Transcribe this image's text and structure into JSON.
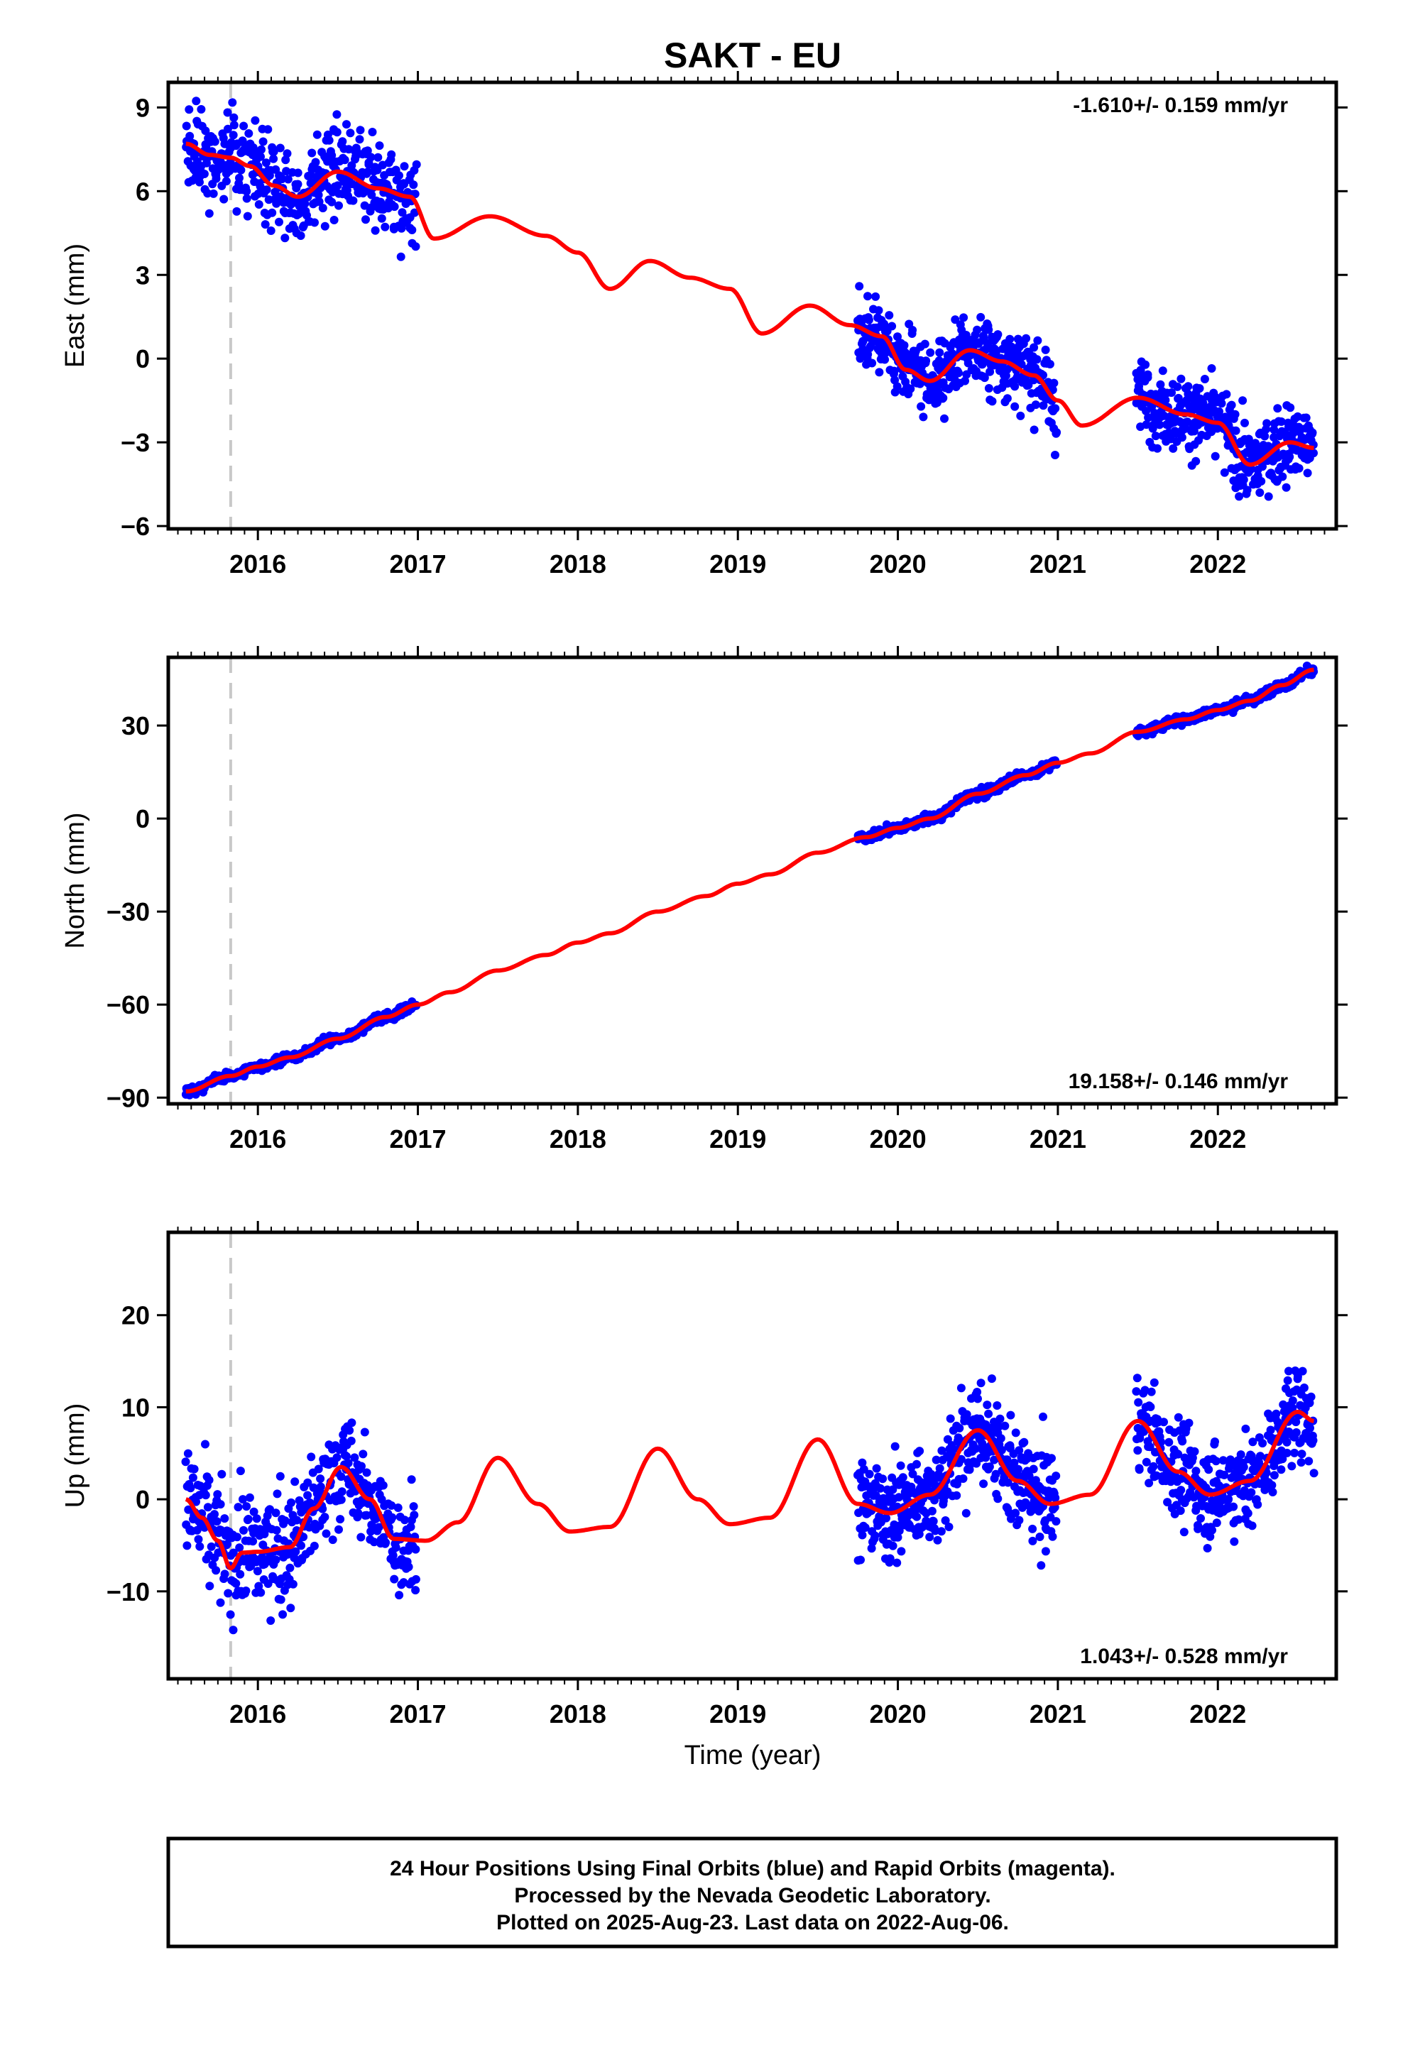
{
  "title": "SAKT - EU",
  "colors": {
    "data": "#0000ff",
    "model": "#ff0000",
    "marker": "#c8c8c8",
    "frame": "#000000"
  },
  "x_label": "Time (year)",
  "footer_lines": [
    "24 Hour Positions Using Final Orbits (blue) and Rapid Orbits (magenta).",
    "Processed by the Nevada Geodetic Laboratory.",
    "Plotted on 2025-Aug-23. Last data on 2022-Aug-06."
  ],
  "chart_data": [
    {
      "type": "scatter",
      "component": "east",
      "ylabel": "East (mm)",
      "rate_text": "-1.610+/- 0.159 mm/yr",
      "xlim": [
        2015.44,
        2022.74
      ],
      "ylim": [
        -6.1,
        9.9
      ],
      "x_ticks": [
        2016,
        2017,
        2018,
        2019,
        2020,
        2021,
        2022
      ],
      "x_tick_labels": [
        "2016",
        "2017",
        "2018",
        "2019",
        "2020",
        "2021",
        "2022"
      ],
      "y_ticks": [
        9,
        6,
        3,
        0,
        -3,
        -6
      ],
      "y_tick_labels": [
        "9",
        "6",
        "3",
        "0",
        "−3",
        "−6"
      ],
      "equipment_change_x": 2015.83,
      "data_segments": [
        {
          "start": 2015.55,
          "end": 2016.99,
          "samples": 430,
          "scatter": 1.1
        },
        {
          "start": 2019.75,
          "end": 2020.99,
          "samples": 430,
          "scatter": 0.95
        },
        {
          "start": 2021.49,
          "end": 2022.6,
          "samples": 380,
          "scatter": 0.95
        }
      ],
      "model_curve": {
        "x": [
          2015.55,
          2015.7,
          2015.83,
          2015.95,
          2016.1,
          2016.25,
          2016.5,
          2016.75,
          2016.95,
          2017.1,
          2017.45,
          2017.8,
          2018.0,
          2018.2,
          2018.45,
          2018.7,
          2018.95,
          2019.15,
          2019.45,
          2019.7,
          2019.9,
          2020.05,
          2020.2,
          2020.45,
          2020.65,
          2020.85,
          2021.0,
          2021.15,
          2021.5,
          2021.8,
          2022.0,
          2022.2,
          2022.45,
          2022.6
        ],
        "y": [
          7.7,
          7.3,
          7.2,
          6.9,
          6.2,
          5.8,
          6.7,
          6.1,
          5.8,
          4.3,
          5.1,
          4.4,
          3.8,
          2.5,
          3.5,
          2.9,
          2.5,
          0.9,
          1.9,
          1.2,
          0.8,
          -0.4,
          -0.8,
          0.3,
          -0.1,
          -0.6,
          -1.5,
          -2.4,
          -1.4,
          -2.0,
          -2.3,
          -3.8,
          -3.0,
          -3.2
        ]
      }
    },
    {
      "type": "scatter",
      "component": "north",
      "ylabel": "North (mm)",
      "rate_text": "19.158+/- 0.146 mm/yr",
      "xlim": [
        2015.44,
        2022.74
      ],
      "ylim": [
        -92,
        52
      ],
      "x_ticks": [
        2016,
        2017,
        2018,
        2019,
        2020,
        2021,
        2022
      ],
      "x_tick_labels": [
        "2016",
        "2017",
        "2018",
        "2019",
        "2020",
        "2021",
        "2022"
      ],
      "y_ticks": [
        30,
        0,
        -30,
        -60,
        -90
      ],
      "y_tick_labels": [
        "30",
        "0",
        "−30",
        "−60",
        "−90"
      ],
      "equipment_change_x": 2015.83,
      "data_segments": [
        {
          "start": 2015.55,
          "end": 2016.99,
          "samples": 430,
          "scatter": 1.0
        },
        {
          "start": 2019.75,
          "end": 2020.99,
          "samples": 430,
          "scatter": 1.0
        },
        {
          "start": 2021.49,
          "end": 2022.6,
          "samples": 380,
          "scatter": 1.0
        }
      ],
      "model_curve": {
        "x": [
          2015.55,
          2015.83,
          2016.0,
          2016.2,
          2016.5,
          2016.8,
          2017.0,
          2017.2,
          2017.5,
          2017.8,
          2018.0,
          2018.2,
          2018.5,
          2018.8,
          2019.0,
          2019.2,
          2019.5,
          2019.8,
          2020.0,
          2020.2,
          2020.5,
          2020.8,
          2021.0,
          2021.2,
          2021.5,
          2021.8,
          2022.0,
          2022.2,
          2022.4,
          2022.6
        ],
        "y": [
          -88,
          -83,
          -80,
          -77,
          -71,
          -64,
          -60,
          -56,
          -49,
          -44,
          -40,
          -37,
          -30,
          -25,
          -21,
          -18,
          -11,
          -6,
          -3,
          0,
          8,
          14,
          18,
          21,
          28,
          32,
          35,
          38,
          43,
          48
        ]
      }
    },
    {
      "type": "scatter",
      "component": "up",
      "ylabel": "Up (mm)",
      "rate_text": "1.043+/- 0.528 mm/yr",
      "xlim": [
        2015.44,
        2022.74
      ],
      "ylim": [
        -19.5,
        29
      ],
      "x_ticks": [
        2016,
        2017,
        2018,
        2019,
        2020,
        2021,
        2022
      ],
      "x_tick_labels": [
        "2016",
        "2017",
        "2018",
        "2019",
        "2020",
        "2021",
        "2022"
      ],
      "y_ticks": [
        20,
        10,
        0,
        -10
      ],
      "y_tick_labels": [
        "20",
        "10",
        "0",
        "−10"
      ],
      "equipment_change_x": 2015.83,
      "data_segments": [
        {
          "start": 2015.55,
          "end": 2016.99,
          "samples": 430,
          "scatter": 4.2
        },
        {
          "start": 2019.75,
          "end": 2020.99,
          "samples": 430,
          "scatter": 3.8
        },
        {
          "start": 2021.49,
          "end": 2022.6,
          "samples": 380,
          "scatter": 3.5
        }
      ],
      "model_curve": {
        "x": [
          2015.55,
          2015.65,
          2015.75,
          2015.83,
          2015.9,
          2016.0,
          2016.2,
          2016.35,
          2016.52,
          2016.7,
          2016.85,
          2017.05,
          2017.25,
          2017.5,
          2017.75,
          2017.95,
          2018.2,
          2018.5,
          2018.75,
          2018.95,
          2019.2,
          2019.5,
          2019.75,
          2019.95,
          2020.2,
          2020.5,
          2020.75,
          2020.95,
          2021.2,
          2021.5,
          2021.75,
          2021.95,
          2022.2,
          2022.5,
          2022.6
        ],
        "y": [
          0,
          -2,
          -4.5,
          -7.5,
          -5.8,
          -5.7,
          -5.2,
          -1,
          3.5,
          0,
          -4.3,
          -4.5,
          -2.5,
          4.5,
          -0.5,
          -3.5,
          -3,
          5.5,
          0,
          -2.7,
          -2,
          6.5,
          -0.5,
          -1.5,
          0.5,
          7.5,
          2,
          -0.5,
          0.5,
          8.5,
          3,
          0.5,
          2,
          9.5,
          8.5
        ]
      }
    }
  ]
}
